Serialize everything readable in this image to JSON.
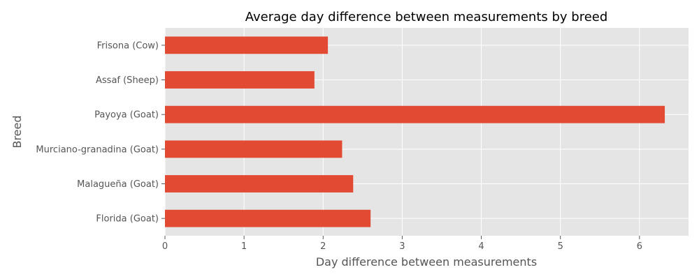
{
  "chart_data": {
    "type": "bar",
    "orientation": "horizontal",
    "title": "Average day difference between measurements by breed",
    "xlabel": "Day difference between measurements",
    "ylabel": "Breed",
    "categories": [
      "Frisona (Cow)",
      "Assaf (Sheep)",
      "Payoya (Goat)",
      "Murciano-granadina (Goat)",
      "Malagueña (Goat)",
      "Florida (Goat)"
    ],
    "values": [
      2.06,
      1.89,
      6.32,
      2.24,
      2.38,
      2.6
    ],
    "xlim": [
      0,
      6.62
    ],
    "xticks": [
      "0",
      "1",
      "2",
      "3",
      "4",
      "5",
      "6"
    ],
    "grid": true,
    "colors": {
      "bar": "#E24A33",
      "plot_background": "#E5E5E5",
      "grid": "#FFFFFF",
      "text": "#555555"
    }
  }
}
